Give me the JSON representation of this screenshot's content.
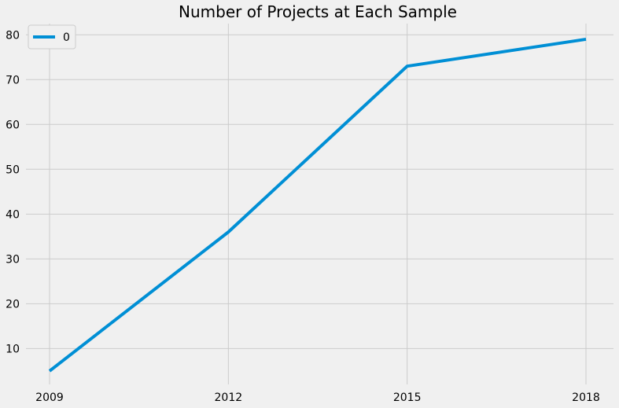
{
  "chart_data": {
    "type": "line",
    "title": "Number of Projects at Each Sample",
    "xlabel": "",
    "ylabel": "",
    "x": [
      "2009",
      "2012",
      "2015",
      "2018"
    ],
    "series": [
      {
        "name": "0",
        "values": [
          5,
          36,
          73,
          79
        ]
      }
    ],
    "ylim": [
      2,
      82.5
    ],
    "y_ticks": [
      10,
      20,
      30,
      40,
      50,
      60,
      70,
      80
    ],
    "grid": true,
    "legend": "top-left",
    "colors": {
      "series": "#008fd5",
      "background": "#f0f0f0",
      "grid": "#cbcbcb"
    }
  }
}
